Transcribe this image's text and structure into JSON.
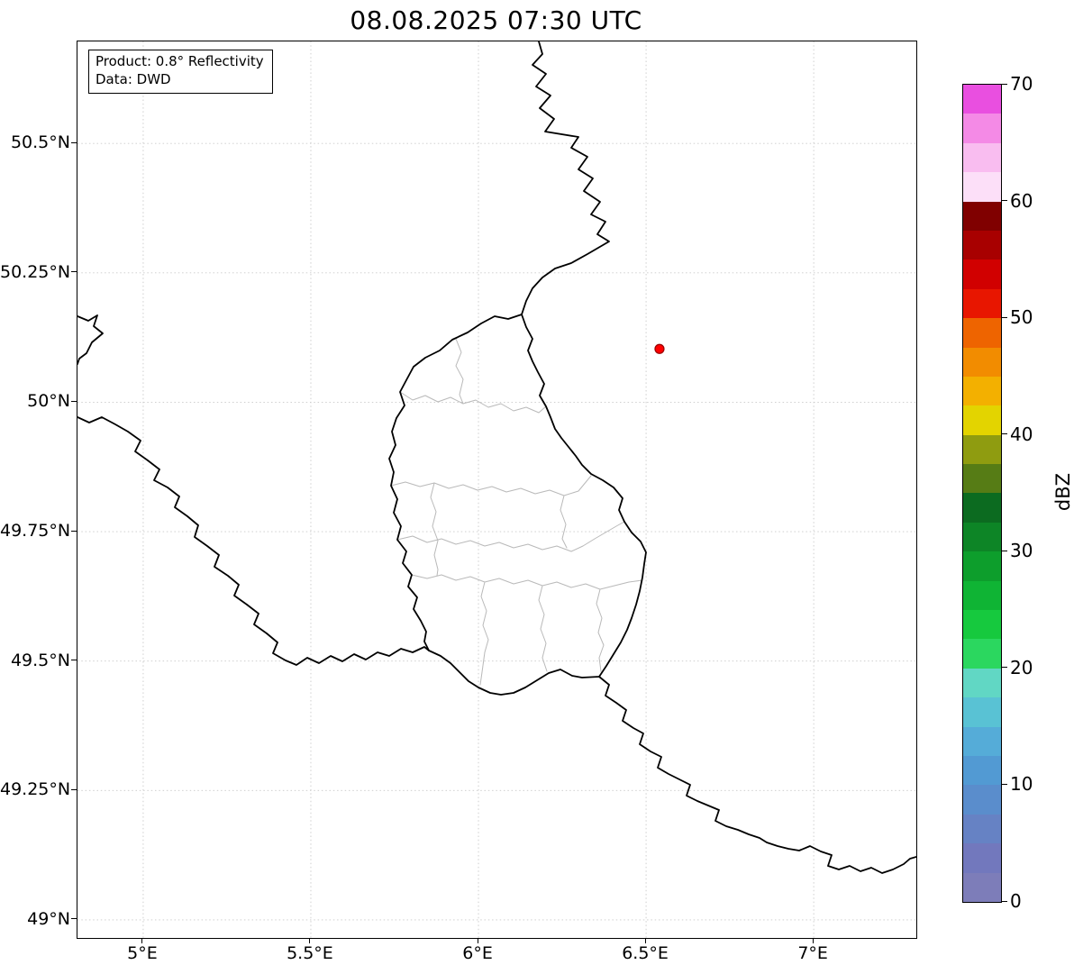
{
  "title": "08.08.2025 07:30 UTC",
  "annotation": {
    "product": "Product: 0.8° Reflectivity",
    "data_source": "Data: DWD"
  },
  "map": {
    "extent": {
      "lon_min": 4.804,
      "lon_max": 7.306,
      "lat_min": 48.965,
      "lat_max": 50.697
    },
    "x_ticks": [
      {
        "label": "5°E",
        "lon": 5.0
      },
      {
        "label": "5.5°E",
        "lon": 5.5
      },
      {
        "label": "6°E",
        "lon": 6.0
      },
      {
        "label": "6.5°E",
        "lon": 6.5
      },
      {
        "label": "7°E",
        "lon": 7.0
      }
    ],
    "y_ticks": [
      {
        "label": "49°N",
        "lat": 49.0
      },
      {
        "label": "49.25°N",
        "lat": 49.25
      },
      {
        "label": "49.5°N",
        "lat": 49.5
      },
      {
        "label": "49.75°N",
        "lat": 49.75
      },
      {
        "label": "50°N",
        "lat": 50.0
      },
      {
        "label": "50.25°N",
        "lat": 50.25
      },
      {
        "label": "50.5°N",
        "lat": 50.5
      }
    ],
    "grid_color": "#c9c9c9",
    "country_border_color": "#000000",
    "district_border_color": "#b9b9b9",
    "marker": {
      "lon": 6.54,
      "lat": 50.103,
      "fill": "#ff0000",
      "edge": "#990000",
      "radius": 5
    }
  },
  "colorbar": {
    "label": "dBZ",
    "min": 0,
    "max": 70,
    "ticks": [
      {
        "label": "0",
        "value": 0
      },
      {
        "label": "10",
        "value": 10
      },
      {
        "label": "20",
        "value": 20
      },
      {
        "label": "30",
        "value": 30
      },
      {
        "label": "40",
        "value": 40
      },
      {
        "label": "50",
        "value": 50
      },
      {
        "label": "60",
        "value": 60
      },
      {
        "label": "70",
        "value": 70
      }
    ],
    "colors_bottom_to_top": [
      "#7d7db9",
      "#7278bd",
      "#6682c4",
      "#5a8dcc",
      "#529ad3",
      "#55acd8",
      "#59c2d4",
      "#61d7c4",
      "#2bd75f",
      "#16c93e",
      "#0fb434",
      "#0d9e2c",
      "#0d8526",
      "#0c6b20",
      "#567c15",
      "#8f9c10",
      "#e3d400",
      "#f3b000",
      "#f28c00",
      "#ee6400",
      "#e81600",
      "#d10000",
      "#a80000",
      "#800000",
      "#fcdff8",
      "#f9bdf0",
      "#f48ae6",
      "#e94fe0"
    ]
  },
  "chart_data": {
    "type": "map",
    "title": "08.08.2025 07:30 UTC",
    "product": "0.8° Reflectivity",
    "data_source": "DWD",
    "lon_axis_ticks": [
      5.0,
      5.5,
      6.0,
      6.5,
      7.0
    ],
    "lat_axis_ticks": [
      49.0,
      49.25,
      49.5,
      49.75,
      50.0,
      50.25,
      50.5
    ],
    "lon_range": [
      4.804,
      7.306
    ],
    "lat_range": [
      48.965,
      50.697
    ],
    "grid": "dotted",
    "marker_lonlat": [
      6.54,
      50.103
    ],
    "reflectivity_echoes": "none visible",
    "colorbar": {
      "unit": "dBZ",
      "range": [
        0,
        70
      ],
      "tick_step": 10,
      "legend_position": "right"
    }
  }
}
